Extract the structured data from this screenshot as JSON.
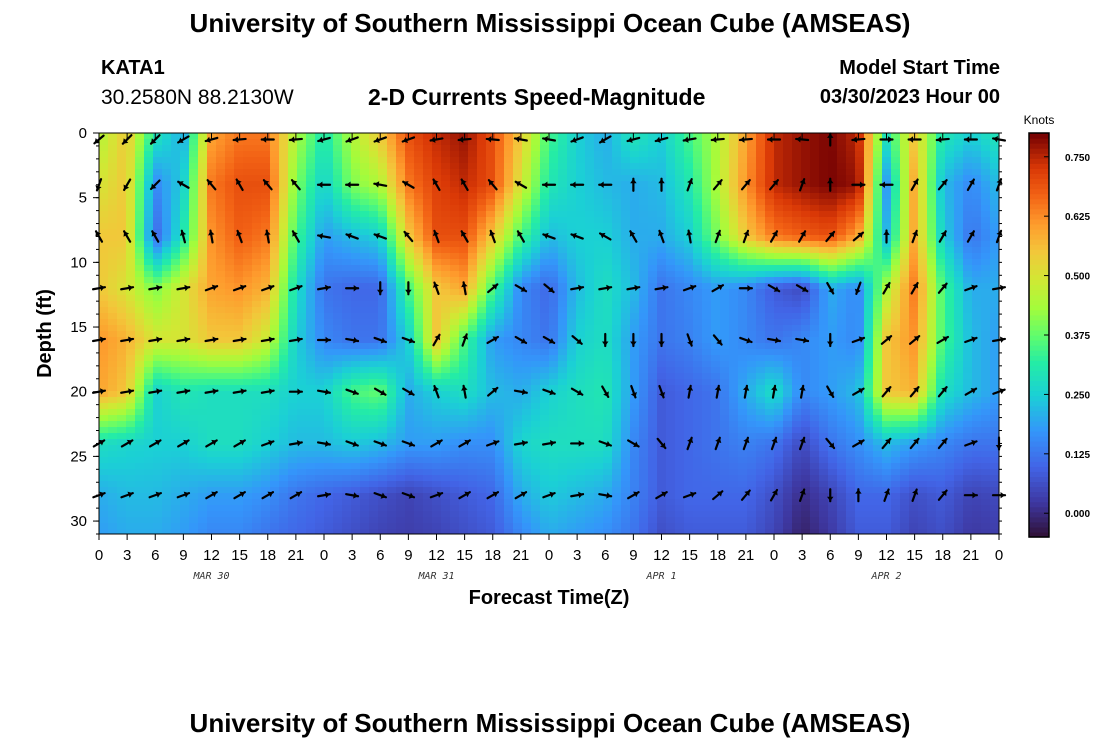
{
  "header": {
    "title": "University of Southern Mississippi Ocean Cube (AMSEAS)",
    "station_id": "KATA1",
    "coords": "30.2580N  88.2130W",
    "subtitle": "2-D Currents Speed-Magnitude",
    "model_label": "Model Start Time",
    "model_time": "03/30/2023 Hour 00"
  },
  "footer": {
    "title": "University of Southern Mississippi Ocean Cube (AMSEAS)"
  },
  "chart_data": {
    "type": "heatmap",
    "title": "2-D Currents Speed-Magnitude",
    "xlabel": "Forecast Time(Z)",
    "ylabel": "Depth (ft)",
    "x_unit": "hours from 03/30/2023 00Z",
    "xlim": [
      0,
      96
    ],
    "ylim": [
      0,
      31
    ],
    "y_inverted": true,
    "x_ticks": [
      {
        "value": 0,
        "label": "0"
      },
      {
        "value": 3,
        "label": "3"
      },
      {
        "value": 6,
        "label": "6"
      },
      {
        "value": 9,
        "label": "9"
      },
      {
        "value": 12,
        "label": "12"
      },
      {
        "value": 15,
        "label": "15"
      },
      {
        "value": 18,
        "label": "18"
      },
      {
        "value": 21,
        "label": "21"
      },
      {
        "value": 24,
        "label": "0"
      },
      {
        "value": 27,
        "label": "3"
      },
      {
        "value": 30,
        "label": "6"
      },
      {
        "value": 33,
        "label": "9"
      },
      {
        "value": 36,
        "label": "12"
      },
      {
        "value": 39,
        "label": "15"
      },
      {
        "value": 42,
        "label": "18"
      },
      {
        "value": 45,
        "label": "21"
      },
      {
        "value": 48,
        "label": "0"
      },
      {
        "value": 51,
        "label": "3"
      },
      {
        "value": 54,
        "label": "6"
      },
      {
        "value": 57,
        "label": "9"
      },
      {
        "value": 60,
        "label": "12"
      },
      {
        "value": 63,
        "label": "15"
      },
      {
        "value": 66,
        "label": "18"
      },
      {
        "value": 69,
        "label": "21"
      },
      {
        "value": 72,
        "label": "0"
      },
      {
        "value": 75,
        "label": "3"
      },
      {
        "value": 78,
        "label": "6"
      },
      {
        "value": 81,
        "label": "9"
      },
      {
        "value": 84,
        "label": "12"
      },
      {
        "value": 87,
        "label": "15"
      },
      {
        "value": 90,
        "label": "18"
      },
      {
        "value": 93,
        "label": "21"
      },
      {
        "value": 96,
        "label": "0"
      }
    ],
    "y_ticks": [
      0,
      5,
      10,
      15,
      20,
      25,
      30
    ],
    "date_labels": [
      {
        "x": 12,
        "label": "MAR 30"
      },
      {
        "x": 36,
        "label": "MAR 31"
      },
      {
        "x": 60,
        "label": "APR 1"
      },
      {
        "x": 84,
        "label": "APR 2"
      }
    ],
    "colorbar": {
      "title": "Knots",
      "min": -0.05,
      "max": 0.8,
      "ticks": [
        "0.000",
        "0.125",
        "0.250",
        "0.375",
        "0.500",
        "0.625",
        "0.750"
      ],
      "tick_values": [
        0,
        0.125,
        0.25,
        0.375,
        0.5,
        0.625,
        0.75
      ]
    },
    "speed_grid": {
      "x_hours": [
        0,
        3,
        6,
        9,
        12,
        15,
        18,
        21,
        24,
        27,
        30,
        33,
        36,
        39,
        42,
        45,
        48,
        51,
        54,
        57,
        60,
        63,
        66,
        69,
        72,
        75,
        78,
        81,
        84,
        87,
        90,
        93,
        96
      ],
      "depths_ft": [
        0,
        4,
        8,
        12,
        16,
        20,
        24,
        28,
        31
      ],
      "values_knots": [
        [
          0.45,
          0.55,
          0.3,
          0.2,
          0.6,
          0.65,
          0.65,
          0.45,
          0.3,
          0.45,
          0.55,
          0.7,
          0.75,
          0.78,
          0.7,
          0.55,
          0.35,
          0.25,
          0.2,
          0.3,
          0.25,
          0.35,
          0.45,
          0.6,
          0.75,
          0.78,
          0.8,
          0.75,
          0.3,
          0.55,
          0.3,
          0.25,
          0.3
        ],
        [
          0.5,
          0.55,
          0.15,
          0.25,
          0.65,
          0.7,
          0.7,
          0.4,
          0.25,
          0.4,
          0.45,
          0.65,
          0.72,
          0.75,
          0.7,
          0.5,
          0.3,
          0.25,
          0.22,
          0.2,
          0.22,
          0.3,
          0.45,
          0.62,
          0.75,
          0.78,
          0.8,
          0.78,
          0.18,
          0.6,
          0.22,
          0.15,
          0.22
        ],
        [
          0.55,
          0.55,
          0.1,
          0.3,
          0.62,
          0.68,
          0.65,
          0.35,
          0.18,
          0.22,
          0.25,
          0.55,
          0.7,
          0.7,
          0.55,
          0.35,
          0.22,
          0.25,
          0.25,
          0.2,
          0.2,
          0.25,
          0.4,
          0.55,
          0.65,
          0.68,
          0.7,
          0.6,
          0.22,
          0.6,
          0.25,
          0.12,
          0.18
        ],
        [
          0.55,
          0.5,
          0.4,
          0.5,
          0.6,
          0.62,
          0.58,
          0.28,
          0.12,
          0.1,
          0.1,
          0.35,
          0.55,
          0.6,
          0.35,
          0.15,
          0.1,
          0.22,
          0.28,
          0.22,
          0.12,
          0.15,
          0.18,
          0.15,
          0.08,
          0.05,
          0.2,
          0.15,
          0.45,
          0.65,
          0.35,
          0.2,
          0.2
        ],
        [
          0.62,
          0.58,
          0.5,
          0.5,
          0.55,
          0.55,
          0.48,
          0.25,
          0.15,
          0.12,
          0.12,
          0.25,
          0.55,
          0.35,
          0.18,
          0.15,
          0.12,
          0.25,
          0.28,
          0.18,
          0.12,
          0.14,
          0.18,
          0.15,
          0.12,
          0.15,
          0.18,
          0.15,
          0.55,
          0.62,
          0.35,
          0.22,
          0.18
        ],
        [
          0.6,
          0.55,
          0.25,
          0.3,
          0.28,
          0.28,
          0.28,
          0.25,
          0.25,
          0.35,
          0.38,
          0.2,
          0.25,
          0.28,
          0.22,
          0.2,
          0.25,
          0.28,
          0.3,
          0.18,
          0.08,
          0.1,
          0.12,
          0.2,
          0.28,
          0.15,
          0.18,
          0.22,
          0.55,
          0.58,
          0.28,
          0.22,
          0.18
        ],
        [
          0.28,
          0.26,
          0.25,
          0.25,
          0.28,
          0.28,
          0.25,
          0.22,
          0.22,
          0.24,
          0.22,
          0.18,
          0.18,
          0.16,
          0.16,
          0.26,
          0.28,
          0.28,
          0.28,
          0.15,
          0.08,
          0.1,
          0.12,
          0.14,
          0.12,
          0.05,
          0.12,
          0.16,
          0.22,
          0.18,
          0.15,
          0.12,
          0.12
        ],
        [
          0.2,
          0.22,
          0.22,
          0.2,
          0.18,
          0.18,
          0.16,
          0.12,
          0.1,
          0.08,
          0.06,
          0.04,
          0.06,
          0.08,
          0.1,
          0.2,
          0.24,
          0.22,
          0.2,
          0.14,
          0.08,
          0.1,
          0.1,
          0.1,
          0.06,
          0.0,
          0.04,
          0.1,
          0.1,
          0.06,
          0.08,
          0.04,
          0.05
        ],
        [
          0.18,
          0.2,
          0.2,
          0.18,
          0.15,
          0.15,
          0.12,
          0.1,
          0.08,
          0.06,
          0.04,
          0.03,
          0.04,
          0.06,
          0.08,
          0.15,
          0.2,
          0.18,
          0.16,
          0.12,
          0.06,
          0.08,
          0.08,
          0.08,
          0.04,
          -0.02,
          0.02,
          0.08,
          0.08,
          0.04,
          0.06,
          0.02,
          0.03
        ]
      ]
    },
    "vector_depths_ft": [
      0.5,
      4,
      8,
      12,
      16,
      20,
      24,
      28
    ],
    "vector_times_h": [
      0,
      3,
      6,
      9,
      12,
      15,
      18,
      21,
      24,
      27,
      30,
      33,
      36,
      39,
      42,
      45,
      48,
      51,
      54,
      57,
      60,
      63,
      66,
      69,
      72,
      75,
      78,
      81,
      84,
      87,
      90,
      93,
      96
    ],
    "vector_directions_deg": [
      [
        230,
        225,
        225,
        240,
        255,
        265,
        270,
        265,
        255,
        250,
        250,
        250,
        260,
        265,
        275,
        280,
        280,
        250,
        240,
        255,
        255,
        260,
        265,
        265,
        270,
        275,
        0,
        265,
        90,
        270,
        265,
        270,
        280
      ],
      [
        200,
        210,
        225,
        300,
        320,
        330,
        320,
        320,
        270,
        270,
        280,
        300,
        330,
        330,
        320,
        300,
        270,
        270,
        270,
        0,
        0,
        20,
        40,
        40,
        40,
        20,
        0,
        90,
        270,
        30,
        40,
        30,
        20
      ],
      [
        330,
        330,
        330,
        345,
        350,
        340,
        350,
        330,
        280,
        290,
        290,
        320,
        340,
        330,
        340,
        330,
        290,
        290,
        300,
        330,
        340,
        350,
        20,
        20,
        30,
        30,
        40,
        50,
        0,
        20,
        30,
        30,
        20
      ],
      [
        80,
        80,
        80,
        80,
        70,
        70,
        70,
        70,
        80,
        90,
        180,
        180,
        340,
        350,
        50,
        120,
        130,
        80,
        80,
        80,
        80,
        70,
        60,
        90,
        120,
        120,
        150,
        200,
        30,
        30,
        40,
        70,
        80
      ],
      [
        80,
        80,
        80,
        80,
        80,
        80,
        80,
        80,
        90,
        100,
        110,
        110,
        30,
        20,
        60,
        120,
        120,
        130,
        180,
        180,
        180,
        160,
        140,
        110,
        100,
        100,
        180,
        70,
        50,
        50,
        60,
        70,
        80
      ],
      [
        80,
        80,
        80,
        80,
        80,
        80,
        80,
        90,
        100,
        110,
        120,
        120,
        340,
        350,
        50,
        100,
        110,
        120,
        150,
        160,
        160,
        10,
        10,
        10,
        10,
        10,
        150,
        60,
        40,
        40,
        40,
        60,
        70
      ],
      [
        60,
        60,
        60,
        60,
        60,
        60,
        70,
        80,
        100,
        110,
        110,
        110,
        60,
        60,
        70,
        80,
        80,
        90,
        110,
        120,
        140,
        20,
        20,
        20,
        20,
        20,
        140,
        60,
        40,
        40,
        40,
        70,
        180
      ],
      [
        70,
        70,
        70,
        70,
        60,
        60,
        60,
        60,
        80,
        100,
        110,
        110,
        70,
        60,
        60,
        60,
        70,
        80,
        100,
        60,
        60,
        70,
        50,
        40,
        30,
        20,
        180,
        360,
        20,
        20,
        40,
        90,
        90
      ]
    ]
  }
}
